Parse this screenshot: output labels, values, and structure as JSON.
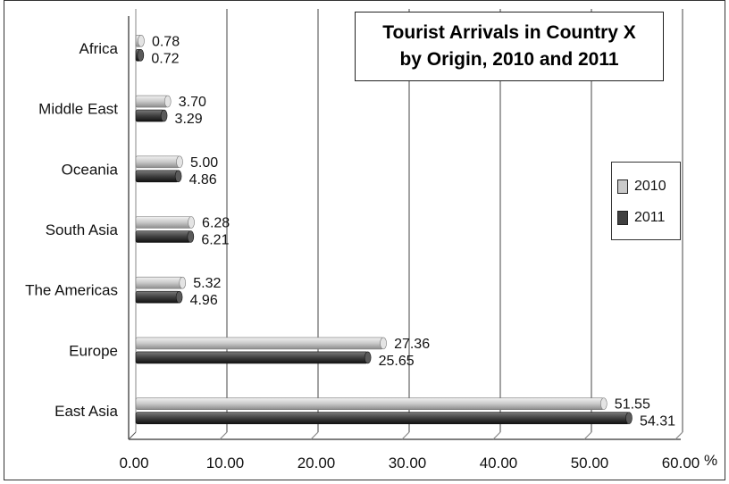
{
  "chart_data": {
    "type": "bar",
    "orientation": "horizontal",
    "title": "Tourist Arrivals in Country X by Origin, 2010 and 2011",
    "title_lines": [
      "Tourist Arrivals in Country X",
      "by Origin, 2010 and 2011"
    ],
    "categories": [
      "Africa",
      "Middle East",
      "Oceania",
      "South Asia",
      "The Americas",
      "Europe",
      "East Asia"
    ],
    "series": [
      {
        "name": "2010",
        "color": "#c9c9c9",
        "values": [
          0.78,
          3.7,
          5.0,
          6.28,
          5.32,
          27.36,
          51.55
        ],
        "labels": [
          "0.78",
          "3.70",
          "5.00",
          "6.28",
          "5.32",
          "27.36",
          "51.55"
        ]
      },
      {
        "name": "2011",
        "color": "#404040",
        "values": [
          0.72,
          3.29,
          4.86,
          6.21,
          4.96,
          25.65,
          54.31
        ],
        "labels": [
          "0.72",
          "3.29",
          "4.86",
          "6.21",
          "4.96",
          "25.65",
          "54.31"
        ]
      }
    ],
    "xlim": [
      0,
      60
    ],
    "xticks": [
      "0.00",
      "10.00",
      "20.00",
      "30.00",
      "40.00",
      "50.00",
      "60.00"
    ],
    "xunit": "%",
    "grid": true,
    "legend_position": "right"
  }
}
